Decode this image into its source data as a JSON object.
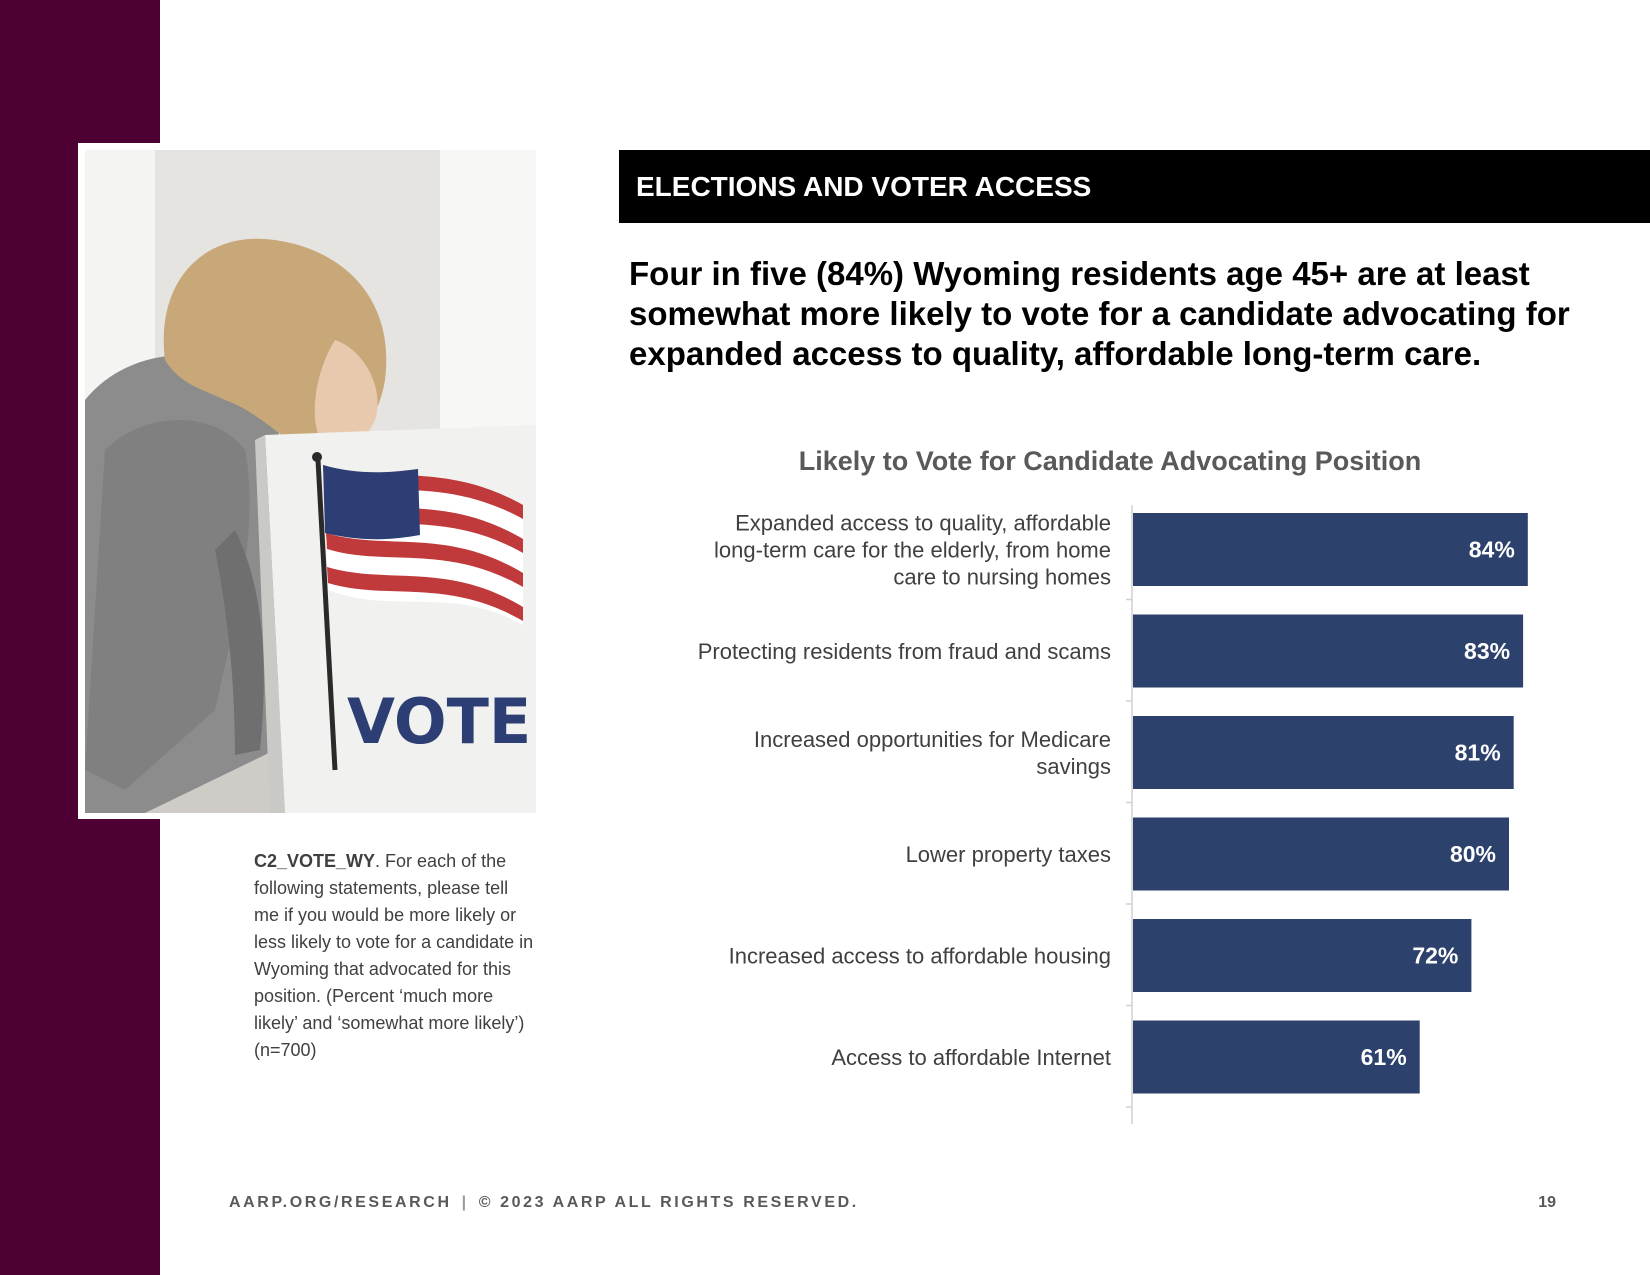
{
  "section_banner": "ELECTIONS AND VOTER ACCESS",
  "headline": "Four in five (84%) Wyoming residents age 45+ are at least somewhat more likely to vote for a candidate advocating for expanded access to quality, affordable long-term care.",
  "photo": {
    "sign_text": "VOTE"
  },
  "question_note": {
    "code": "C2_VOTE_WY",
    "text": ". For each of the following statements, please tell me if you would be more likely or less likely to vote for a candidate in Wyoming that advocated for this position. (Percent ‘much more likely’ and ‘somewhat more likely’) (n=700)"
  },
  "chart_data": {
    "type": "bar",
    "orientation": "horizontal",
    "title": "Likely to Vote for Candidate Advocating Position",
    "categories": [
      [
        "Expanded access to quality, affordable",
        "long-term care for the elderly, from home",
        "care to nursing homes"
      ],
      [
        "Protecting residents from fraud and scams"
      ],
      [
        "Increased opportunities for Medicare",
        "savings"
      ],
      [
        "Lower property taxes"
      ],
      [
        "Increased access to affordable housing"
      ],
      [
        "Access to affordable Internet"
      ]
    ],
    "values": [
      84,
      83,
      81,
      80,
      72,
      61
    ],
    "value_labels": [
      "84%",
      "83%",
      "81%",
      "80%",
      "72%",
      "61%"
    ],
    "xlim": [
      0,
      100
    ],
    "bar_color": "#2c416b",
    "label_color": "#ffffff"
  },
  "footer": {
    "left": "AARP.ORG/RESEARCH",
    "separator": "|",
    "right": "© 2023 AARP ALL RIGHTS RESERVED."
  },
  "page_number": "19",
  "colors": {
    "sidebar": "#4e0035",
    "banner": "#000000",
    "bar": "#2c416b"
  }
}
